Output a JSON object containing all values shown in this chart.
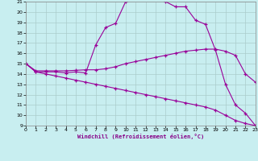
{
  "xlabel": "Windchill (Refroidissement éolien,°C)",
  "bg_color": "#c8eef0",
  "line_color": "#990099",
  "grid_color": "#aacccc",
  "xmin": 0,
  "xmax": 23,
  "ymin": 9,
  "ymax": 21,
  "line1_x": [
    0,
    1,
    2,
    3,
    4,
    5,
    6,
    7,
    8,
    9,
    10,
    11,
    12,
    13,
    14,
    15,
    16,
    17,
    18,
    19,
    20,
    21,
    22,
    23
  ],
  "line1_y": [
    15.0,
    14.2,
    14.2,
    14.2,
    14.1,
    14.2,
    14.1,
    16.8,
    18.5,
    18.9,
    21.0,
    21.2,
    21.2,
    21.4,
    21.0,
    20.5,
    20.5,
    19.2,
    18.8,
    16.3,
    13.0,
    11.0,
    10.2,
    9.0
  ],
  "line2_x": [
    0,
    1,
    2,
    3,
    4,
    5,
    6,
    7,
    8,
    9,
    10,
    11,
    12,
    13,
    14,
    15,
    16,
    17,
    18,
    19,
    20,
    21,
    22,
    23
  ],
  "line2_y": [
    15.0,
    14.3,
    14.3,
    14.3,
    14.3,
    14.35,
    14.4,
    14.4,
    14.5,
    14.7,
    15.0,
    15.2,
    15.4,
    15.6,
    15.8,
    16.0,
    16.2,
    16.3,
    16.4,
    16.4,
    16.2,
    15.8,
    14.0,
    13.2
  ],
  "line3_x": [
    0,
    1,
    2,
    3,
    4,
    5,
    6,
    7,
    8,
    9,
    10,
    11,
    12,
    13,
    14,
    15,
    16,
    17,
    18,
    19,
    20,
    21,
    22,
    23
  ],
  "line3_y": [
    15.0,
    14.2,
    14.0,
    13.8,
    13.6,
    13.4,
    13.2,
    13.0,
    12.8,
    12.6,
    12.4,
    12.2,
    12.0,
    11.8,
    11.6,
    11.4,
    11.2,
    11.0,
    10.8,
    10.5,
    10.0,
    9.5,
    9.2,
    9.0
  ]
}
